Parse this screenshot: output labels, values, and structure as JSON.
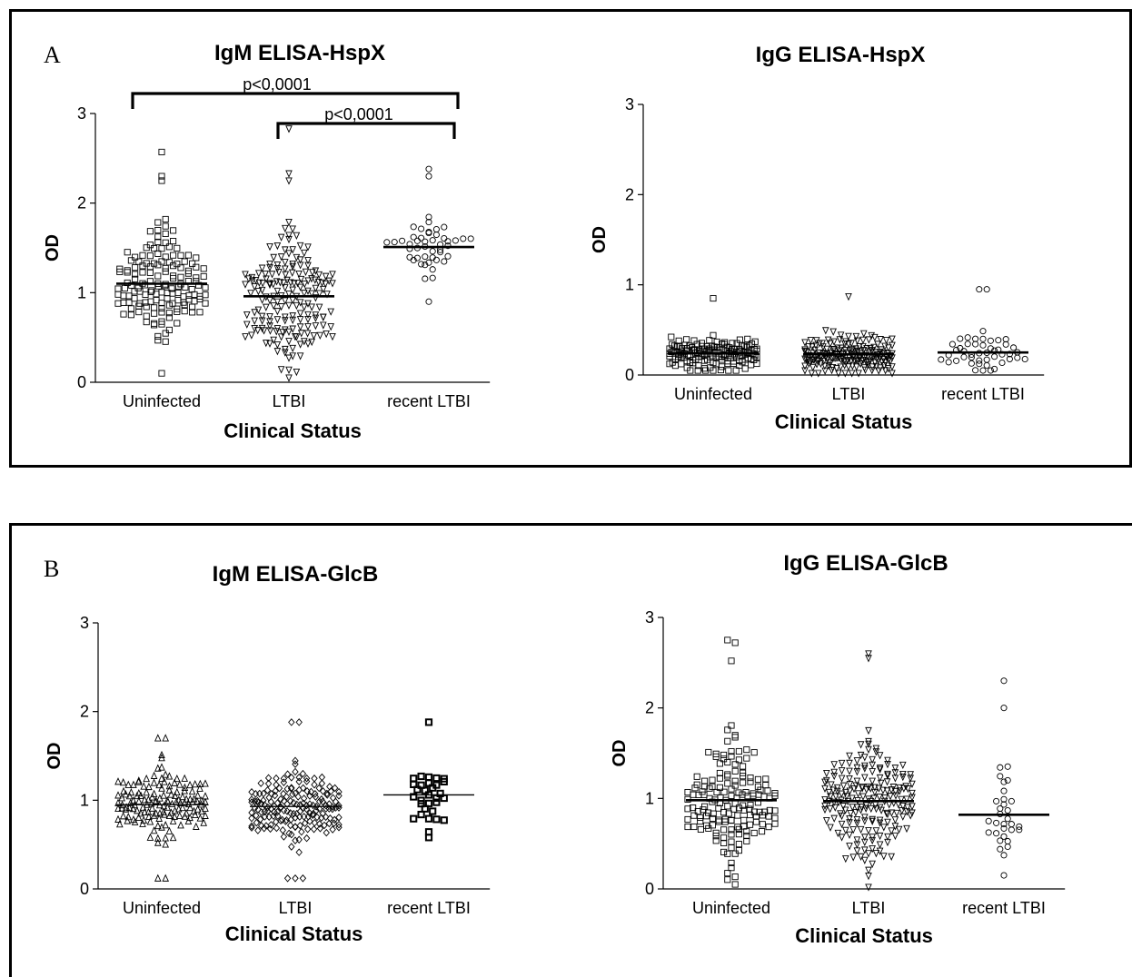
{
  "panels": [
    {
      "letter": "A"
    },
    {
      "letter": "B"
    }
  ],
  "chart_data": [
    {
      "type": "scatter",
      "panel": "A",
      "title": "IgM ELISA-HspX",
      "xlabel": "Clinical Status",
      "ylabel": "OD",
      "categories": [
        "Uninfected",
        "LTBI",
        "recent LTBI"
      ],
      "ylim": [
        0,
        3
      ],
      "yticks": [
        "0",
        "1",
        "2",
        "3"
      ],
      "grid": false,
      "series": [
        {
          "marker": "square",
          "n": 150,
          "min": 0.1,
          "max": 2.57,
          "median": 1.1,
          "outliers": [
            2.57,
            2.3,
            2.25
          ]
        },
        {
          "marker": "triangle-down",
          "n": 180,
          "min": 0.05,
          "max": 2.83,
          "median": 0.96,
          "outliers": [
            2.83,
            2.33,
            2.25
          ]
        },
        {
          "marker": "circle",
          "n": 45,
          "min": 0.9,
          "max": 2.38,
          "median": 1.51,
          "outliers": [
            2.38,
            2.3
          ]
        }
      ],
      "annotations": [
        {
          "text": "p<0,0001",
          "from": "Uninfected",
          "to": "recent LTBI"
        },
        {
          "text": "p<0,0001",
          "from": "LTBI",
          "to": "recent LTBI"
        }
      ]
    },
    {
      "type": "scatter",
      "panel": "A",
      "title": "IgG ELISA-HspX",
      "xlabel": "Clinical Status",
      "ylabel": "OD",
      "categories": [
        "Uninfected",
        "LTBI",
        "recent LTBI"
      ],
      "ylim": [
        0,
        3
      ],
      "yticks": [
        "0",
        "1",
        "2",
        "3"
      ],
      "grid": false,
      "series": [
        {
          "marker": "square",
          "n": 150,
          "min": 0.05,
          "max": 0.85,
          "median": 0.24,
          "outliers": [
            0.85
          ]
        },
        {
          "marker": "triangle-down",
          "n": 180,
          "min": 0.02,
          "max": 0.87,
          "median": 0.23,
          "outliers": [
            0.87
          ]
        },
        {
          "marker": "circle",
          "n": 45,
          "min": 0.05,
          "max": 0.95,
          "median": 0.25,
          "outliers": [
            0.95,
            0.95
          ]
        }
      ]
    },
    {
      "type": "scatter",
      "panel": "B",
      "title": "IgM ELISA-GlcB",
      "xlabel": "Clinical Status",
      "ylabel": "OD",
      "categories": [
        "Uninfected",
        "LTBI",
        "recent LTBI"
      ],
      "ylim": [
        0,
        3
      ],
      "yticks": [
        "0",
        "1",
        "2",
        "3"
      ],
      "grid": false,
      "series": [
        {
          "marker": "triangle-up",
          "n": 150,
          "min": 0.12,
          "max": 1.7,
          "median": 0.95,
          "outliers": [
            1.7,
            1.7,
            0.12
          ]
        },
        {
          "marker": "diamond",
          "n": 180,
          "min": 0.12,
          "max": 1.88,
          "median": 0.93,
          "outliers": [
            1.88,
            1.88,
            0.12,
            0.12
          ]
        },
        {
          "marker": "square-bold",
          "n": 30,
          "min": 0.58,
          "max": 1.88,
          "median": 1.06,
          "outliers": [
            1.88
          ]
        }
      ]
    },
    {
      "type": "scatter",
      "panel": "B",
      "title": "IgG ELISA-GlcB",
      "xlabel": "Clinical Status",
      "ylabel": "OD",
      "categories": [
        "Uninfected",
        "LTBI",
        "recent LTBI"
      ],
      "ylim": [
        0,
        3
      ],
      "yticks": [
        "0",
        "1",
        "2",
        "3"
      ],
      "grid": false,
      "series": [
        {
          "marker": "square",
          "n": 160,
          "min": 0.05,
          "max": 2.75,
          "median": 0.98,
          "outliers": [
            2.75,
            2.72,
            2.52
          ]
        },
        {
          "marker": "triangle-down",
          "n": 200,
          "min": 0.02,
          "max": 2.6,
          "median": 0.97,
          "outliers": [
            2.6,
            2.55
          ]
        },
        {
          "marker": "circle",
          "n": 30,
          "min": 0.15,
          "max": 2.3,
          "median": 0.82,
          "outliers": [
            2.3,
            2.0
          ]
        }
      ]
    }
  ]
}
